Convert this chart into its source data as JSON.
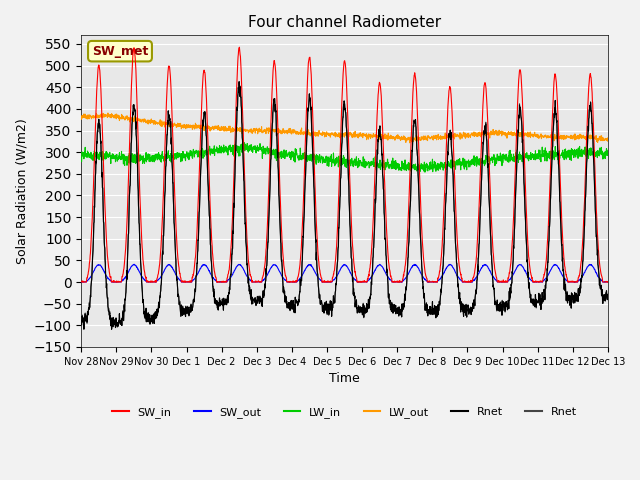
{
  "title": "Four channel Radiometer",
  "xlabel": "Time",
  "ylabel": "Solar Radiation (W/m2)",
  "ylim": [
    -150,
    570
  ],
  "yticks": [
    -150,
    -100,
    -50,
    0,
    50,
    100,
    150,
    200,
    250,
    300,
    350,
    400,
    450,
    500,
    550
  ],
  "xtick_labels": [
    "Nov 28",
    "Nov 29",
    "Nov 30",
    "Dec 1",
    "Dec 2",
    "Dec 3",
    "Dec 4",
    "Dec 5",
    "Dec 6",
    "Dec 7",
    "Dec 8",
    "Dec 9",
    "Dec 10",
    "Dec 11",
    "Dec 12",
    "Dec 13"
  ],
  "annotation_text": "SW_met",
  "annotation_bg": "#ffffcc",
  "annotation_border": "#999900",
  "annotation_text_color": "#880000",
  "bg_color": "#e8e8e8",
  "sw_in_color": "#ff0000",
  "sw_out_color": "#0000ff",
  "lw_in_color": "#00cc00",
  "lw_out_color": "#ff9900",
  "rnet_black_color": "#000000",
  "rnet_dark_color": "#444444",
  "legend_entries": [
    "SW_in",
    "SW_out",
    "LW_in",
    "LW_out",
    "Rnet",
    "Rnet"
  ],
  "legend_colors": [
    "#ff0000",
    "#0000ff",
    "#00cc00",
    "#ff9900",
    "#000000",
    "#444444"
  ],
  "grid_color": "#ffffff",
  "num_points": 2016,
  "peak_sw_in": [
    500,
    540,
    500,
    490,
    540,
    510,
    520,
    510,
    460,
    480,
    450,
    460,
    490,
    480
  ],
  "lw_out_base": [
    380,
    385,
    375,
    365,
    360,
    355,
    350,
    350,
    345,
    340,
    340,
    335,
    330,
    335,
    340,
    345,
    340,
    335,
    335,
    330
  ],
  "lw_in_base": [
    295,
    290,
    285,
    290,
    295,
    305,
    310,
    300,
    290,
    280,
    275,
    270,
    265,
    270,
    275,
    285,
    290,
    295,
    300,
    295
  ]
}
